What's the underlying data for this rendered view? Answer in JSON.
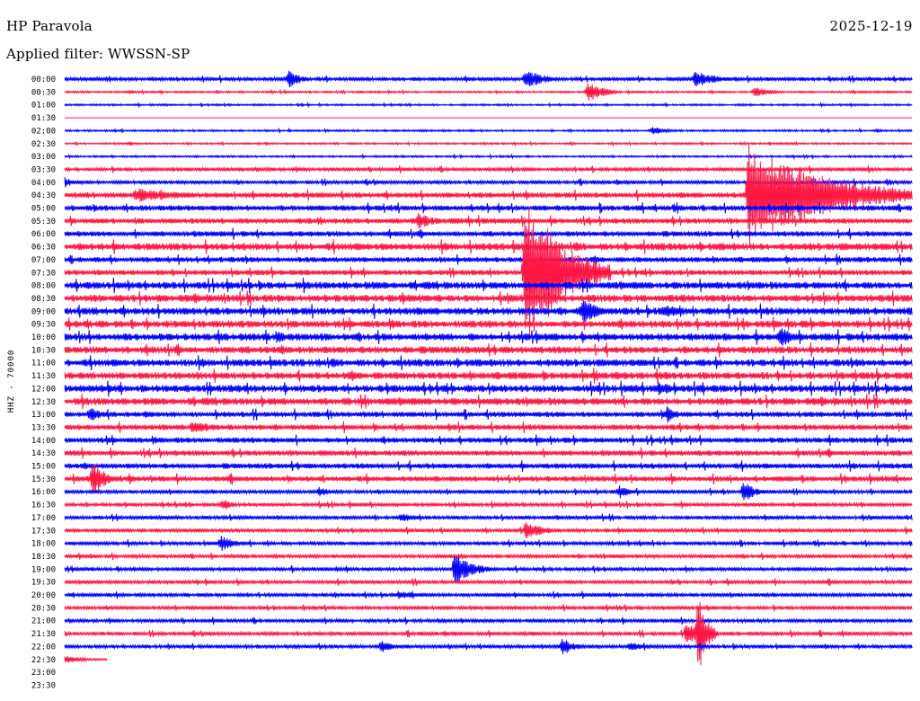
{
  "header": {
    "station": "HP Paravola",
    "date": "2025-12-19",
    "filter": "Applied filter: WWSSN-SP"
  },
  "chart_data": {
    "type": "line",
    "subtype": "helicorder",
    "title": "HP Paravola",
    "subtitle": "Applied filter: WWSSN-SP",
    "date": "2025-12-19",
    "ylabel": "HHZ - 70000",
    "xlabel": "",
    "colors": [
      "#0000ff",
      "#ff1744"
    ],
    "grid": false,
    "trace_minutes": 30,
    "tick_labels": [
      "00:00",
      "00:30",
      "01:00",
      "01:30",
      "02:00",
      "02:30",
      "03:00",
      "03:30",
      "04:00",
      "04:30",
      "05:00",
      "05:30",
      "06:00",
      "06:30",
      "07:00",
      "07:30",
      "08:00",
      "08:30",
      "09:00",
      "09:30",
      "10:00",
      "10:30",
      "11:00",
      "11:30",
      "12:00",
      "12:30",
      "13:00",
      "13:30",
      "14:00",
      "14:30",
      "15:00",
      "15:30",
      "16:00",
      "16:30",
      "17:00",
      "17:30",
      "18:00",
      "18:30",
      "19:00",
      "19:30",
      "20:00",
      "20:30",
      "21:00",
      "21:30",
      "22:00",
      "22:30",
      "23:00",
      "23:30"
    ],
    "noise_level": [
      2,
      1,
      1,
      0,
      1,
      1,
      1,
      2,
      2,
      3,
      3,
      3,
      3,
      4,
      3,
      3,
      4,
      4,
      4,
      4,
      4,
      4,
      4,
      4,
      4,
      4,
      3,
      3,
      3,
      3,
      3,
      3,
      2,
      2,
      2,
      2,
      2,
      2,
      2,
      2,
      2,
      2,
      2,
      2,
      2,
      1,
      0,
      0
    ],
    "trace_end_minute": [
      30,
      30,
      30,
      30,
      30,
      30,
      30,
      30,
      30,
      30,
      30,
      30,
      30,
      30,
      30,
      30,
      30,
      30,
      30,
      30,
      30,
      30,
      30,
      30,
      30,
      30,
      30,
      30,
      30,
      30,
      30,
      30,
      30,
      30,
      30,
      30,
      30,
      30,
      30,
      30,
      30,
      30,
      30,
      30,
      30,
      1.5,
      0,
      0
    ],
    "events": [
      {
        "line": 0,
        "minute": 7.9,
        "amplitude": 10,
        "duration": 1
      },
      {
        "line": 0,
        "minute": 16.3,
        "amplitude": 12,
        "duration": 1.5
      },
      {
        "line": 0,
        "minute": 22.3,
        "amplitude": 9,
        "duration": 2
      },
      {
        "line": 1,
        "minute": 18.5,
        "amplitude": 13,
        "duration": 1.2
      },
      {
        "line": 1,
        "minute": 24.4,
        "amplitude": 6,
        "duration": 1.2
      },
      {
        "line": 4,
        "minute": 20.8,
        "amplitude": 5,
        "duration": 1
      },
      {
        "line": 8,
        "minute": 0,
        "amplitude": 6,
        "duration": 1
      },
      {
        "line": 9,
        "minute": 2.5,
        "amplitude": 8,
        "duration": 4
      },
      {
        "line": 9,
        "minute": 24.2,
        "amplitude": 60,
        "duration": 6
      },
      {
        "line": 11,
        "minute": 12.5,
        "amplitude": 9,
        "duration": 1.5
      },
      {
        "line": 15,
        "minute": 16.3,
        "amplitude": 90,
        "duration": 3
      },
      {
        "line": 18,
        "minute": 18.3,
        "amplitude": 14,
        "duration": 1.5
      },
      {
        "line": 18,
        "minute": 21.2,
        "amplitude": 9,
        "duration": 1.5
      },
      {
        "line": 20,
        "minute": 7.5,
        "amplitude": 8,
        "duration": 1
      },
      {
        "line": 20,
        "minute": 25.3,
        "amplitude": 11,
        "duration": 1.5
      },
      {
        "line": 24,
        "minute": 21.0,
        "amplitude": 8,
        "duration": 1.5
      },
      {
        "line": 26,
        "minute": 0.9,
        "amplitude": 9,
        "duration": 1
      },
      {
        "line": 26,
        "minute": 21.3,
        "amplitude": 10,
        "duration": 1
      },
      {
        "line": 27,
        "minute": 4.5,
        "amplitude": 8,
        "duration": 2
      },
      {
        "line": 31,
        "minute": 1.0,
        "amplitude": 20,
        "duration": 1
      },
      {
        "line": 32,
        "minute": 9.0,
        "amplitude": 6,
        "duration": 1
      },
      {
        "line": 32,
        "minute": 19.6,
        "amplitude": 8,
        "duration": 1
      },
      {
        "line": 32,
        "minute": 24.0,
        "amplitude": 12,
        "duration": 1
      },
      {
        "line": 33,
        "minute": 5.6,
        "amplitude": 9,
        "duration": 0.6
      },
      {
        "line": 34,
        "minute": 11.9,
        "amplitude": 7,
        "duration": 1
      },
      {
        "line": 35,
        "minute": 16.3,
        "amplitude": 11,
        "duration": 1.5
      },
      {
        "line": 36,
        "minute": 5.5,
        "amplitude": 9,
        "duration": 1.2
      },
      {
        "line": 38,
        "minute": 13.8,
        "amplitude": 18,
        "duration": 1.5
      },
      {
        "line": 40,
        "minute": 11.8,
        "amplitude": 5,
        "duration": 2.5
      },
      {
        "line": 43,
        "minute": 22.0,
        "amplitude": 14,
        "duration": 1.2
      },
      {
        "line": 43,
        "minute": 22.4,
        "amplitude": 45,
        "duration": 0.7
      },
      {
        "line": 44,
        "minute": 11.2,
        "amplitude": 7,
        "duration": 1
      },
      {
        "line": 44,
        "minute": 17.6,
        "amplitude": 10,
        "duration": 1
      },
      {
        "line": 44,
        "minute": 20.0,
        "amplitude": 6,
        "duration": 1.5
      },
      {
        "line": 45,
        "minute": 0,
        "amplitude": 5,
        "duration": 1.5
      }
    ]
  }
}
